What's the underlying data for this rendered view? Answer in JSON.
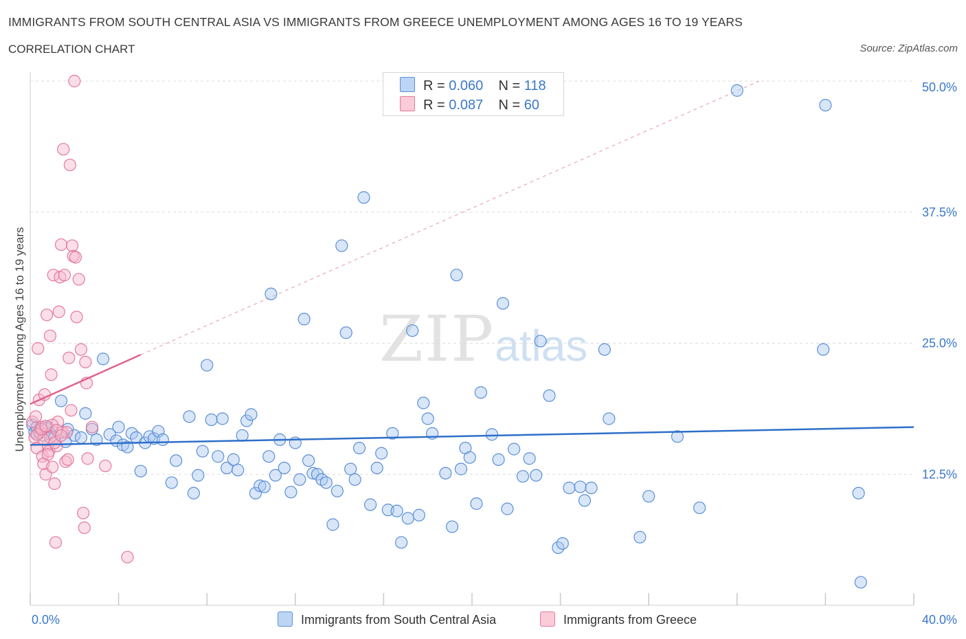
{
  "title": "IMMIGRANTS FROM SOUTH CENTRAL ASIA VS IMMIGRANTS FROM GREECE UNEMPLOYMENT AMONG AGES 16 TO 19 YEARS",
  "subtitle": "CORRELATION CHART",
  "source": "Source: ZipAtlas.com",
  "watermark": {
    "zip": "ZIP",
    "atlas": "atlas"
  },
  "legend": {
    "rows": [
      {
        "r_label": "R =",
        "r_value": "0.060",
        "n_label": "N =",
        "n_value": "118"
      },
      {
        "r_label": "R =",
        "r_value": "0.087",
        "n_label": "N =",
        "n_value": "60"
      }
    ]
  },
  "colors": {
    "blue_fill": "#a9c8f0",
    "blue_stroke": "#5b8fd6",
    "blue_line": "#2e6fc9",
    "pink_fill": "#f7b9cb",
    "pink_stroke": "#e27a9b",
    "pink_line": "#e0628a",
    "grid": "#dcdcdc",
    "axis_label": "#3b78c8"
  },
  "chart_data": {
    "type": "scatter",
    "xlabel": "",
    "ylabel": "Unemployment Among Ages 16 to 19 years",
    "xlim": [
      0,
      40
    ],
    "ylim": [
      0,
      50
    ],
    "x_tick_labels": [
      "0.0%",
      "40.0%"
    ],
    "y_ticks": [
      12.5,
      25.0,
      37.5,
      50.0
    ],
    "y_tick_labels": [
      "12.5%",
      "25.0%",
      "37.5%",
      "50.0%"
    ],
    "grid": "horizontal dashed",
    "legend_position": "top-center",
    "series": [
      {
        "name": "Immigrants from South Central Asia",
        "color": "#5b8fd6",
        "trend": {
          "x": [
            0,
            40
          ],
          "y": [
            15.3,
            17.0
          ]
        },
        "points": [
          [
            0.1,
            17.2
          ],
          [
            0.2,
            16.5
          ],
          [
            0.3,
            17.0
          ],
          [
            0.4,
            16.4
          ],
          [
            0.5,
            16.8
          ],
          [
            0.6,
            16.2
          ],
          [
            0.7,
            16.9
          ],
          [
            0.8,
            17.0
          ],
          [
            0.9,
            16.4
          ],
          [
            1.1,
            16.0
          ],
          [
            1.4,
            19.5
          ],
          [
            1.6,
            15.6
          ],
          [
            1.7,
            16.8
          ],
          [
            2.0,
            16.2
          ],
          [
            2.3,
            16.0
          ],
          [
            2.5,
            18.3
          ],
          [
            2.8,
            16.8
          ],
          [
            3.0,
            15.8
          ],
          [
            3.3,
            23.5
          ],
          [
            3.6,
            16.3
          ],
          [
            3.9,
            15.7
          ],
          [
            4.0,
            17.0
          ],
          [
            4.2,
            15.3
          ],
          [
            4.4,
            15.1
          ],
          [
            4.6,
            16.4
          ],
          [
            4.8,
            16.0
          ],
          [
            5.0,
            12.8
          ],
          [
            5.2,
            15.5
          ],
          [
            5.4,
            16.1
          ],
          [
            5.6,
            15.9
          ],
          [
            5.8,
            16.6
          ],
          [
            6.0,
            15.8
          ],
          [
            6.4,
            11.7
          ],
          [
            6.6,
            13.8
          ],
          [
            7.2,
            18.0
          ],
          [
            7.4,
            10.7
          ],
          [
            7.6,
            12.4
          ],
          [
            7.8,
            14.7
          ],
          [
            8.0,
            22.9
          ],
          [
            8.2,
            17.7
          ],
          [
            8.5,
            14.2
          ],
          [
            8.7,
            17.8
          ],
          [
            8.9,
            13.1
          ],
          [
            9.2,
            13.9
          ],
          [
            9.4,
            12.9
          ],
          [
            9.6,
            16.2
          ],
          [
            9.8,
            17.6
          ],
          [
            10.0,
            18.2
          ],
          [
            10.2,
            10.7
          ],
          [
            10.4,
            11.4
          ],
          [
            10.6,
            11.3
          ],
          [
            10.8,
            14.2
          ],
          [
            10.9,
            29.7
          ],
          [
            11.1,
            12.4
          ],
          [
            11.3,
            15.8
          ],
          [
            11.5,
            13.1
          ],
          [
            11.8,
            10.8
          ],
          [
            12.0,
            15.5
          ],
          [
            12.2,
            12.0
          ],
          [
            12.4,
            27.3
          ],
          [
            12.6,
            13.8
          ],
          [
            12.8,
            12.6
          ],
          [
            13.0,
            12.5
          ],
          [
            13.2,
            12.0
          ],
          [
            13.4,
            11.7
          ],
          [
            13.7,
            7.7
          ],
          [
            13.9,
            10.9
          ],
          [
            14.1,
            34.3
          ],
          [
            14.3,
            26.0
          ],
          [
            14.5,
            13.0
          ],
          [
            14.7,
            12.0
          ],
          [
            14.9,
            15.0
          ],
          [
            15.1,
            38.9
          ],
          [
            15.4,
            9.6
          ],
          [
            15.7,
            13.1
          ],
          [
            15.9,
            14.5
          ],
          [
            16.2,
            9.1
          ],
          [
            16.4,
            16.4
          ],
          [
            16.6,
            9.0
          ],
          [
            16.8,
            6.0
          ],
          [
            17.1,
            8.3
          ],
          [
            17.3,
            26.2
          ],
          [
            17.6,
            8.6
          ],
          [
            17.8,
            19.3
          ],
          [
            18.0,
            17.8
          ],
          [
            18.2,
            16.4
          ],
          [
            18.8,
            12.6
          ],
          [
            19.1,
            7.5
          ],
          [
            19.3,
            31.5
          ],
          [
            19.5,
            13.0
          ],
          [
            19.7,
            15.0
          ],
          [
            19.9,
            14.1
          ],
          [
            20.2,
            9.7
          ],
          [
            20.4,
            20.3
          ],
          [
            20.9,
            16.3
          ],
          [
            21.2,
            13.9
          ],
          [
            21.4,
            28.8
          ],
          [
            21.6,
            9.2
          ],
          [
            21.9,
            14.9
          ],
          [
            22.3,
            12.3
          ],
          [
            22.6,
            14.0
          ],
          [
            22.9,
            12.4
          ],
          [
            23.1,
            25.2
          ],
          [
            23.5,
            20.0
          ],
          [
            23.9,
            5.5
          ],
          [
            24.1,
            5.9
          ],
          [
            24.4,
            11.2
          ],
          [
            24.9,
            11.3
          ],
          [
            25.1,
            10.0
          ],
          [
            25.4,
            11.2
          ],
          [
            26.0,
            24.4
          ],
          [
            26.2,
            17.8
          ],
          [
            27.6,
            6.5
          ],
          [
            28.0,
            10.4
          ],
          [
            29.3,
            16.1
          ],
          [
            30.3,
            9.3
          ],
          [
            32.0,
            49.1
          ],
          [
            36.0,
            47.7
          ],
          [
            35.9,
            24.4
          ],
          [
            37.5,
            10.7
          ],
          [
            37.6,
            2.2
          ]
        ]
      },
      {
        "name": "Immigrants from Greece",
        "color": "#e27a9b",
        "trend": {
          "x": [
            0,
            5.0
          ],
          "y": [
            19.2,
            23.9
          ],
          "dashed_extension": {
            "x": [
              5.0,
              33.0
            ],
            "y": [
              23.9,
              50.0
            ]
          }
        },
        "points": [
          [
            0.1,
            17.5
          ],
          [
            0.2,
            16.0
          ],
          [
            0.25,
            18.0
          ],
          [
            0.3,
            15.0
          ],
          [
            0.35,
            24.5
          ],
          [
            0.4,
            19.6
          ],
          [
            0.45,
            16.5
          ],
          [
            0.5,
            17.0
          ],
          [
            0.55,
            14.2
          ],
          [
            0.6,
            13.5
          ],
          [
            0.65,
            20.1
          ],
          [
            0.7,
            12.5
          ],
          [
            0.75,
            27.7
          ],
          [
            0.8,
            15.3
          ],
          [
            0.85,
            14.7
          ],
          [
            0.9,
            25.7
          ],
          [
            0.95,
            22.0
          ],
          [
            1.0,
            13.2
          ],
          [
            1.05,
            31.5
          ],
          [
            1.1,
            11.6
          ],
          [
            1.15,
            6.0
          ],
          [
            1.2,
            15.2
          ],
          [
            1.25,
            17.5
          ],
          [
            1.3,
            28.0
          ],
          [
            1.35,
            31.3
          ],
          [
            1.4,
            34.4
          ],
          [
            1.45,
            16.5
          ],
          [
            1.5,
            43.5
          ],
          [
            1.55,
            31.5
          ],
          [
            1.6,
            13.7
          ],
          [
            1.65,
            16.5
          ],
          [
            1.7,
            13.9
          ],
          [
            1.75,
            23.6
          ],
          [
            1.8,
            42.0
          ],
          [
            1.85,
            18.6
          ],
          [
            1.9,
            34.3
          ],
          [
            1.95,
            33.3
          ],
          [
            2.0,
            50.0
          ],
          [
            2.05,
            33.2
          ],
          [
            2.1,
            27.5
          ],
          [
            2.2,
            31.1
          ],
          [
            2.3,
            24.4
          ],
          [
            2.4,
            8.8
          ],
          [
            2.45,
            7.4
          ],
          [
            2.5,
            23.2
          ],
          [
            2.55,
            21.2
          ],
          [
            2.6,
            14.0
          ],
          [
            2.8,
            17.0
          ],
          [
            3.4,
            13.3
          ],
          [
            4.4,
            4.6
          ],
          [
            0.9,
            16.0
          ],
          [
            1.0,
            17.2
          ],
          [
            0.6,
            15.8
          ],
          [
            0.8,
            14.4
          ],
          [
            1.2,
            16.7
          ],
          [
            0.3,
            16.3
          ],
          [
            0.5,
            16.8
          ],
          [
            0.7,
            17.1
          ],
          [
            1.1,
            15.5
          ],
          [
            1.4,
            16.2
          ]
        ]
      }
    ]
  }
}
